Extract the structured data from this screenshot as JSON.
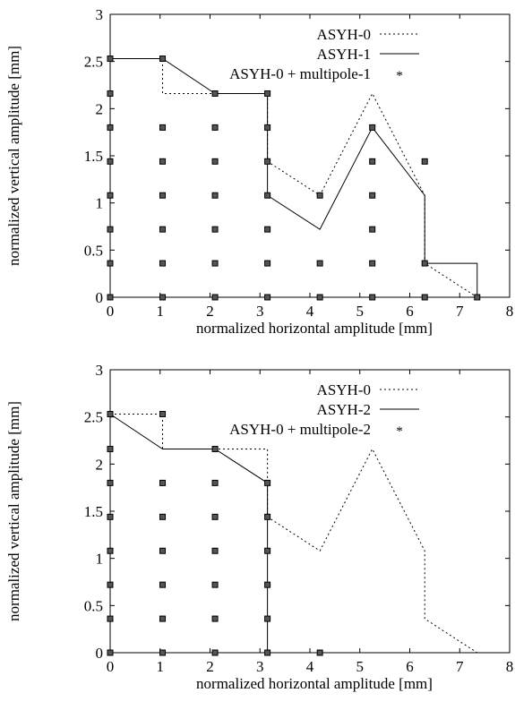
{
  "chart_data": [
    {
      "type": "line",
      "xlabel": "normalized horizontal amplitude [mm]",
      "ylabel": "normalized vertical amplitude [mm]",
      "xlim": [
        0,
        8
      ],
      "ylim": [
        0,
        3
      ],
      "x_ticks": [
        "0",
        "1",
        "2",
        "3",
        "4",
        "5",
        "6",
        "7",
        "8"
      ],
      "y_ticks": [
        "0",
        "0.5",
        "1",
        "1.5",
        "2",
        "2.5",
        "3"
      ],
      "grid": false,
      "legend_position": "top-right",
      "series": [
        {
          "name": "ASYH-0",
          "style": "dotted",
          "x": [
            0,
            1.05,
            1.05,
            3.15,
            3.15,
            4.2,
            5.25,
            6.3,
            6.3,
            7.35
          ],
          "y": [
            2.53,
            2.53,
            2.16,
            2.16,
            1.44,
            1.08,
            2.16,
            1.08,
            0.36,
            0
          ]
        },
        {
          "name": "ASYH-1",
          "style": "solid",
          "x": [
            0,
            1.05,
            2.1,
            3.15,
            3.15,
            4.2,
            5.25,
            6.3,
            6.3,
            7.35,
            7.35
          ],
          "y": [
            2.53,
            2.53,
            2.16,
            2.16,
            1.08,
            0.72,
            1.8,
            1.08,
            0.36,
            0.36,
            0
          ]
        },
        {
          "name": "ASYH-0 + multipole-1",
          "style": "points",
          "x": [
            0,
            0,
            0,
            0,
            0,
            0,
            0,
            0,
            1.05,
            1.05,
            1.05,
            1.05,
            1.05,
            1.05,
            1.05,
            2.1,
            2.1,
            2.1,
            2.1,
            2.1,
            2.1,
            2.1,
            3.15,
            3.15,
            3.15,
            3.15,
            3.15,
            3.15,
            3.15,
            4.2,
            4.2,
            4.2,
            5.25,
            5.25,
            5.25,
            5.25,
            5.25,
            5.25,
            6.3,
            6.3,
            6.3,
            7.35
          ],
          "y": [
            0,
            0.36,
            0.72,
            1.08,
            1.44,
            1.8,
            2.16,
            2.53,
            0,
            0.36,
            0.72,
            1.08,
            1.44,
            1.8,
            2.53,
            0,
            0.36,
            0.72,
            1.08,
            1.44,
            1.8,
            2.16,
            0,
            0.36,
            0.72,
            1.08,
            1.44,
            1.8,
            2.16,
            0,
            0.36,
            1.08,
            0,
            0.36,
            0.72,
            1.08,
            1.44,
            1.8,
            0,
            0.36,
            1.44,
            0
          ]
        }
      ]
    },
    {
      "type": "line",
      "xlabel": "normalized horizontal amplitude [mm]",
      "ylabel": "normalized vertical amplitude [mm]",
      "xlim": [
        0,
        8
      ],
      "ylim": [
        0,
        3
      ],
      "x_ticks": [
        "0",
        "1",
        "2",
        "3",
        "4",
        "5",
        "6",
        "7",
        "8"
      ],
      "y_ticks": [
        "0",
        "0.5",
        "1",
        "1.5",
        "2",
        "2.5",
        "3"
      ],
      "grid": false,
      "legend_position": "top-right",
      "series": [
        {
          "name": "ASYH-0",
          "style": "dotted",
          "x": [
            0,
            1.05,
            1.05,
            3.15,
            3.15,
            4.2,
            5.25,
            6.3,
            6.3,
            7.35
          ],
          "y": [
            2.53,
            2.53,
            2.16,
            2.16,
            1.44,
            1.08,
            2.16,
            1.08,
            0.36,
            0
          ]
        },
        {
          "name": "ASYH-2",
          "style": "solid",
          "x": [
            0,
            1.05,
            2.1,
            3.15,
            3.15
          ],
          "y": [
            2.53,
            2.16,
            2.16,
            1.8,
            0
          ]
        },
        {
          "name": "ASYH-0 + multipole-2",
          "style": "points",
          "x": [
            0,
            0,
            0,
            0,
            0,
            0,
            0,
            0,
            1.05,
            1.05,
            1.05,
            1.05,
            1.05,
            1.05,
            1.05,
            2.1,
            2.1,
            2.1,
            2.1,
            2.1,
            2.1,
            2.1,
            3.15,
            3.15,
            3.15,
            3.15,
            3.15,
            3.15,
            4.2
          ],
          "y": [
            0,
            0.36,
            0.72,
            1.08,
            1.44,
            1.8,
            2.16,
            2.53,
            0,
            0.36,
            0.72,
            1.08,
            1.44,
            1.8,
            2.53,
            0,
            0.36,
            0.72,
            1.08,
            1.44,
            1.8,
            2.16,
            0,
            0.36,
            0.72,
            1.08,
            1.44,
            1.8,
            0
          ]
        }
      ]
    }
  ]
}
